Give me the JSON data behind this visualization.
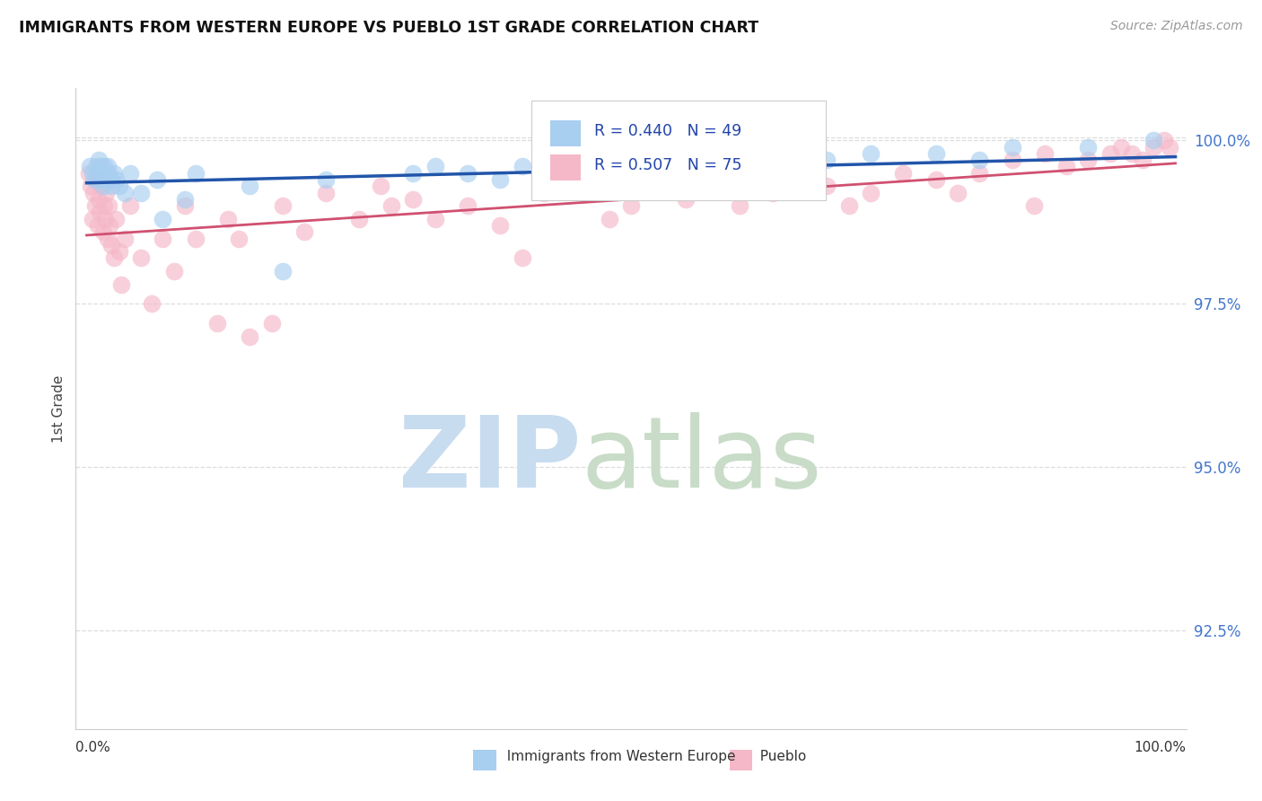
{
  "title": "IMMIGRANTS FROM WESTERN EUROPE VS PUEBLO 1ST GRADE CORRELATION CHART",
  "source_text": "Source: ZipAtlas.com",
  "ylabel": "1st Grade",
  "x_label_bottom_left": "0.0%",
  "x_label_bottom_right": "100.0%",
  "legend_label_blue": "Immigrants from Western Europe",
  "legend_label_pink": "Pueblo",
  "R_blue": 0.44,
  "N_blue": 49,
  "R_pink": 0.507,
  "N_pink": 75,
  "ytick_vals": [
    92.5,
    95.0,
    97.5,
    100.0
  ],
  "ylim_bottom": 91.0,
  "ylim_top": 100.8,
  "xlim_left": -1.0,
  "xlim_right": 101.0,
  "color_blue": "#A8CEF0",
  "color_pink": "#F5B8C8",
  "line_color_blue": "#2255AA",
  "line_color_pink": "#D05070",
  "ytick_color": "#4477CC",
  "background_color": "#FFFFFF",
  "grid_color": "#DDDDDD",
  "spine_color": "#CCCCCC",
  "blue_x": [
    0.3,
    0.5,
    0.7,
    0.9,
    1.0,
    1.1,
    1.2,
    1.3,
    1.4,
    1.5,
    1.6,
    1.7,
    1.8,
    1.9,
    2.0,
    2.2,
    2.3,
    2.5,
    2.7,
    3.0,
    3.5,
    4.0,
    5.0,
    6.5,
    7.0,
    9.0,
    10.0,
    15.0,
    18.0,
    22.0,
    30.0,
    32.0,
    35.0,
    38.0,
    40.0,
    42.0,
    45.0,
    48.0,
    50.0,
    55.0,
    62.0,
    65.0,
    68.0,
    72.0,
    78.0,
    82.0,
    85.0,
    92.0,
    98.0
  ],
  "blue_y": [
    99.6,
    99.5,
    99.4,
    99.6,
    99.5,
    99.7,
    99.4,
    99.6,
    99.5,
    99.3,
    99.6,
    99.5,
    99.4,
    99.6,
    99.5,
    99.4,
    99.3,
    99.5,
    99.4,
    99.3,
    99.2,
    99.5,
    99.2,
    99.4,
    98.8,
    99.1,
    99.5,
    99.3,
    98.0,
    99.4,
    99.5,
    99.6,
    99.5,
    99.4,
    99.6,
    99.5,
    99.7,
    99.5,
    99.6,
    99.7,
    99.5,
    99.6,
    99.7,
    99.8,
    99.8,
    99.7,
    99.9,
    99.9,
    100.0
  ],
  "pink_x": [
    0.2,
    0.4,
    0.5,
    0.6,
    0.8,
    0.9,
    1.0,
    1.1,
    1.2,
    1.3,
    1.5,
    1.6,
    1.7,
    1.8,
    1.9,
    2.0,
    2.1,
    2.3,
    2.5,
    2.7,
    3.0,
    3.2,
    3.5,
    4.0,
    5.0,
    6.0,
    7.0,
    8.0,
    9.0,
    10.0,
    12.0,
    13.0,
    14.0,
    15.0,
    17.0,
    18.0,
    20.0,
    22.0,
    25.0,
    27.0,
    28.0,
    30.0,
    32.0,
    35.0,
    38.0,
    40.0,
    42.0,
    45.0,
    48.0,
    50.0,
    52.0,
    55.0,
    58.0,
    60.0,
    63.0,
    65.0,
    68.0,
    70.0,
    72.0,
    75.0,
    78.0,
    80.0,
    82.0,
    85.0,
    87.0,
    88.0,
    90.0,
    92.0,
    94.0,
    95.0,
    96.0,
    97.0,
    98.0,
    99.0,
    99.5
  ],
  "pink_y": [
    99.5,
    99.3,
    98.8,
    99.2,
    99.0,
    99.4,
    98.7,
    99.1,
    98.9,
    99.3,
    98.6,
    99.0,
    98.8,
    99.2,
    98.5,
    99.0,
    98.7,
    98.4,
    98.2,
    98.8,
    98.3,
    97.8,
    98.5,
    99.0,
    98.2,
    97.5,
    98.5,
    98.0,
    99.0,
    98.5,
    97.2,
    98.8,
    98.5,
    97.0,
    97.2,
    99.0,
    98.6,
    99.2,
    98.8,
    99.3,
    99.0,
    99.1,
    98.8,
    99.0,
    98.7,
    98.2,
    99.2,
    99.4,
    98.8,
    99.0,
    99.3,
    99.1,
    99.4,
    99.0,
    99.2,
    99.5,
    99.3,
    99.0,
    99.2,
    99.5,
    99.4,
    99.2,
    99.5,
    99.7,
    99.0,
    99.8,
    99.6,
    99.7,
    99.8,
    99.9,
    99.8,
    99.7,
    99.9,
    100.0,
    99.9
  ],
  "blue_line_x0": 0.0,
  "blue_line_x1": 100.0,
  "blue_line_y0": 99.35,
  "blue_line_y1": 99.75,
  "pink_line_x0": 0.0,
  "pink_line_x1": 100.0,
  "pink_line_y0": 98.55,
  "pink_line_y1": 99.65
}
